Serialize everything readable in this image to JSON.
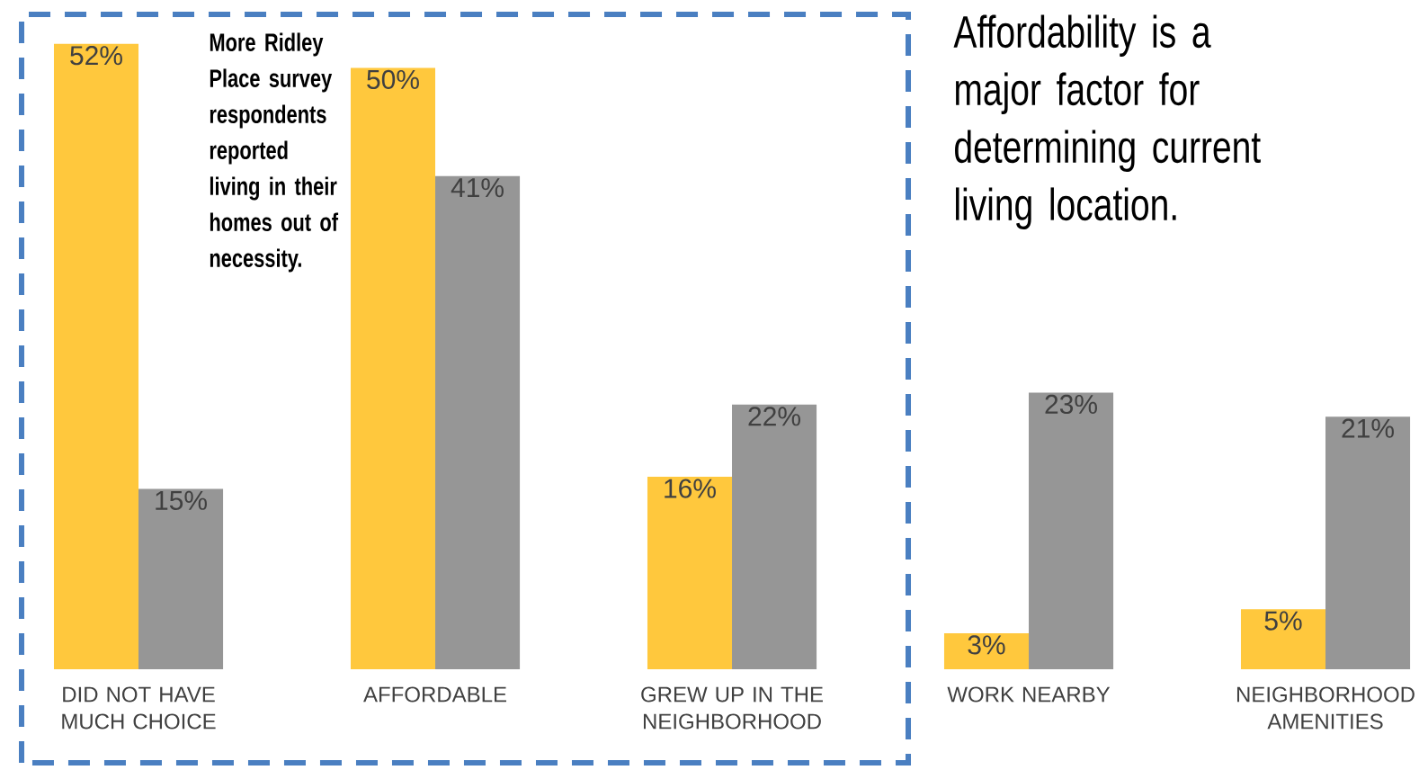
{
  "chart_data": {
    "type": "bar",
    "title": "Affordability is a major factor for determining current living location.",
    "categories": [
      "DID NOT HAVE MUCH CHOICE",
      "AFFORDABLE",
      "GREW UP IN THE NEIGHBORHOOD",
      "WORK NEARBY",
      "NEIGHBORHOOD AMENITIES"
    ],
    "series": [
      {
        "color": "#ffc83d",
        "values": [
          52,
          50,
          16,
          3,
          5
        ],
        "value_labels": [
          "52%",
          "50%",
          "16%",
          "3%",
          "5%"
        ]
      },
      {
        "color": "#969696",
        "values": [
          15,
          41,
          22,
          23,
          21
        ],
        "value_labels": [
          "15%",
          "41%",
          "22%",
          "23%",
          "21%"
        ]
      }
    ],
    "annotations": [
      "More Ridley Place survey respondents reported living in their homes out of necessity."
    ]
  }
}
